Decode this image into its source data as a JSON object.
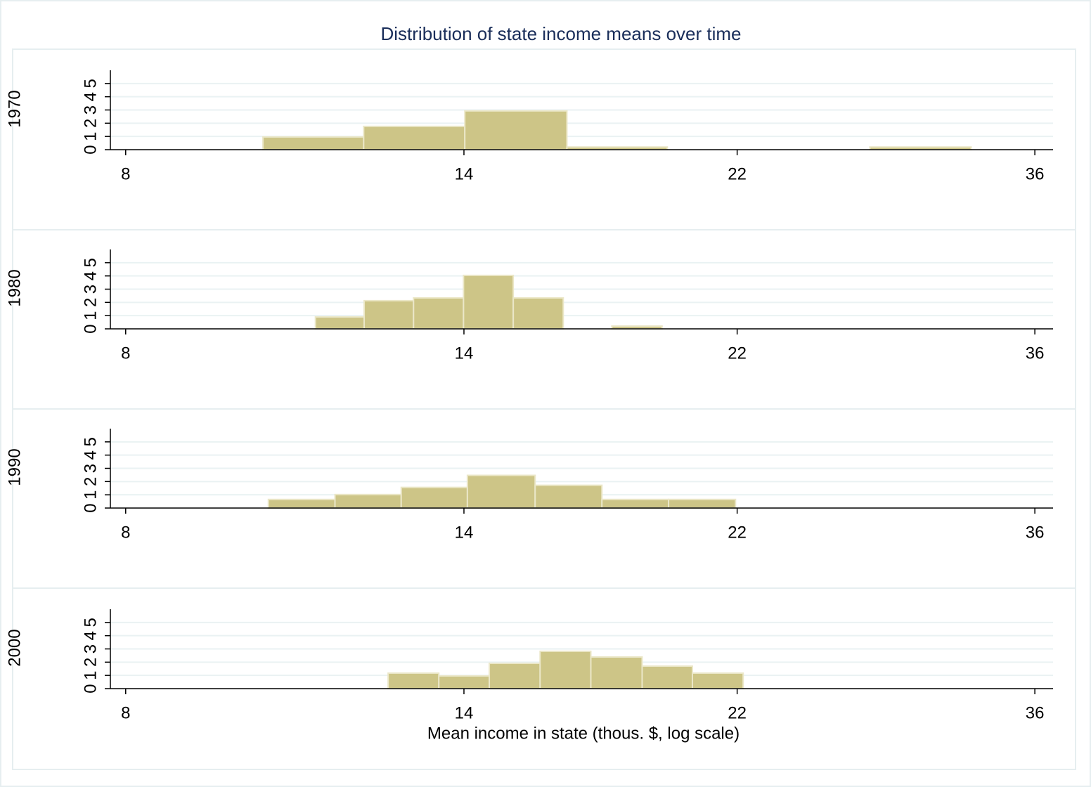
{
  "chart_data": {
    "type": "histogram",
    "title": "Distribution of state income means over time",
    "xlabel": "Mean income in state (thous. $, log scale)",
    "xscale": "log",
    "xlim": [
      7.8,
      37.1
    ],
    "xticks": [
      8,
      14,
      22,
      36
    ],
    "ylim": [
      0,
      6
    ],
    "yticks": [
      0,
      1,
      2,
      3,
      4,
      5
    ],
    "grid": true,
    "color": "#cdc587",
    "panels": [
      {
        "label": "1970",
        "bins": [
          10.04,
          11.86,
          14.02,
          16.6,
          19.6,
          23.2,
          27.4,
          32.4
        ],
        "values": [
          0.96,
          1.76,
          2.93,
          0.2,
          0,
          0,
          0.2
        ]
      },
      {
        "label": "1980",
        "bins": [
          10.95,
          11.87,
          12.88,
          13.99,
          15.19,
          16.5,
          17.88,
          19.43
        ],
        "values": [
          0.9,
          2.13,
          2.34,
          4.04,
          2.34,
          0,
          0.21
        ]
      },
      {
        "label": "1990",
        "bins": [
          10.13,
          11.31,
          12.62,
          14.08,
          15.75,
          17.59,
          19.64,
          21.94
        ],
        "values": [
          0.65,
          1.02,
          1.56,
          2.47,
          1.72,
          0.65,
          0.65
        ]
      },
      {
        "label": "2000",
        "bins": [
          12.35,
          13.43,
          14.6,
          15.88,
          17.27,
          18.8,
          20.43,
          22.22
        ],
        "values": [
          1.17,
          0.96,
          1.91,
          2.82,
          2.39,
          1.7,
          1.17
        ]
      }
    ]
  }
}
